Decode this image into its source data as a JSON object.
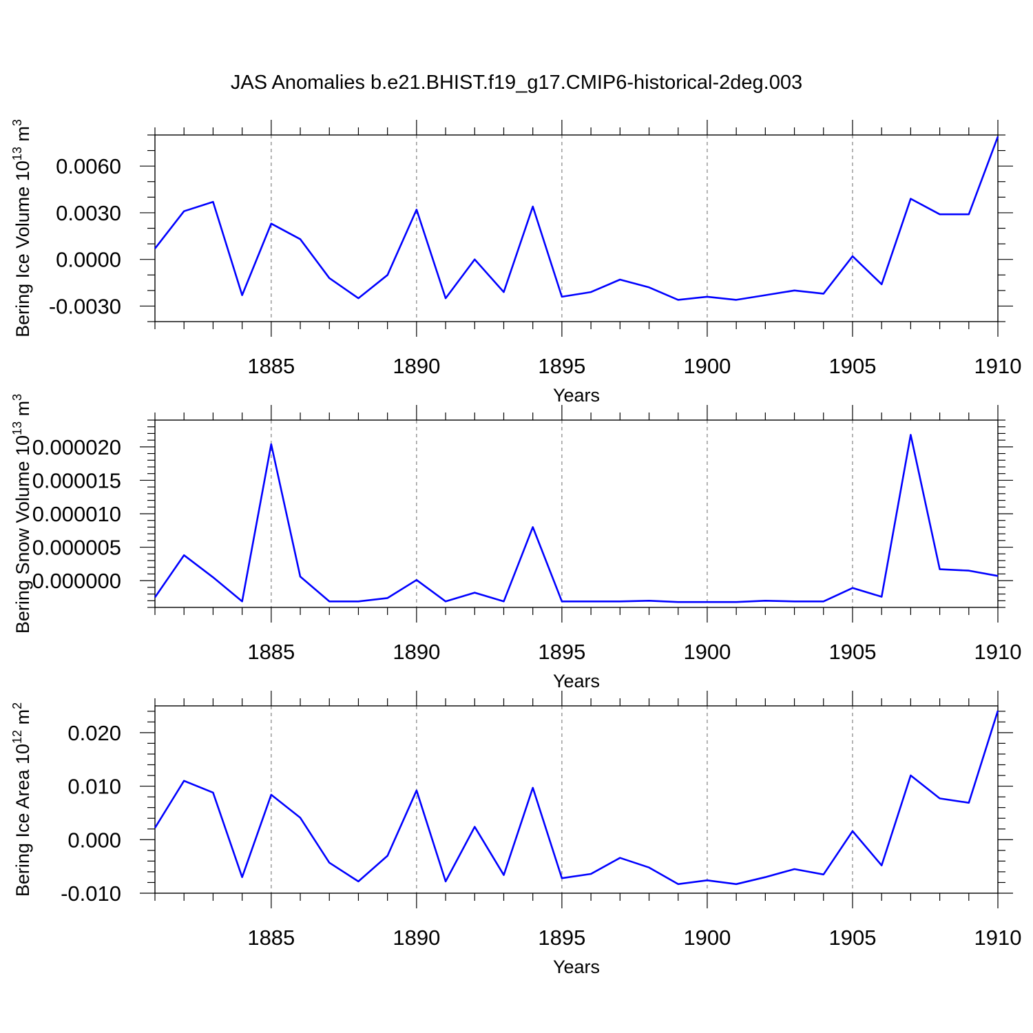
{
  "title": "JAS Anomalies b.e21.BHIST.f19_g17.CMIP6-historical-2deg.003",
  "colors": {
    "line": "#0000ff",
    "grid": "#808080",
    "axis": "#000000"
  },
  "chart_data": [
    {
      "type": "line",
      "title": "JAS Anomalies b.e21.BHIST.f19_g17.CMIP6-historical-2deg.003",
      "xlabel": "Years",
      "ylabel": {
        "text": "Bering Ice Volume 10",
        "exp": "13",
        "unit": " m",
        "unit_exp": "3"
      },
      "xlim": [
        1881,
        1910
      ],
      "ylim": [
        -0.004,
        0.008
      ],
      "xticks": [
        1885,
        1890,
        1895,
        1900,
        1905,
        1910
      ],
      "xtick_labels": [
        "1885",
        "1890",
        "1895",
        "1900",
        "1905",
        "1910"
      ],
      "yticks": [
        -0.003,
        0.0,
        0.003,
        0.006
      ],
      "ytick_labels": [
        "-0.0030",
        "0.0000",
        "0.0030",
        "0.0060"
      ],
      "yminor_step": 0.001,
      "grid": "x-dashed",
      "series": [
        {
          "name": "Bering Ice Volume",
          "x": [
            1881,
            1882,
            1883,
            1884,
            1885,
            1886,
            1887,
            1888,
            1889,
            1890,
            1891,
            1892,
            1893,
            1894,
            1895,
            1896,
            1897,
            1898,
            1899,
            1900,
            1901,
            1902,
            1903,
            1904,
            1905,
            1906,
            1907,
            1908,
            1909,
            1910
          ],
          "values": [
            0.0007,
            0.0031,
            0.0037,
            -0.0023,
            0.0023,
            0.0013,
            -0.0012,
            -0.0025,
            -0.001,
            0.0032,
            -0.0025,
            0.0,
            -0.0021,
            0.0034,
            -0.0024,
            -0.0021,
            -0.0013,
            -0.0018,
            -0.0026,
            -0.0024,
            -0.0026,
            -0.0023,
            -0.002,
            -0.0022,
            0.0002,
            -0.0016,
            0.0039,
            0.0029,
            0.0029,
            0.0079
          ]
        }
      ]
    },
    {
      "type": "line",
      "xlabel": "Years",
      "ylabel": {
        "text": "Bering Snow Volume 10",
        "exp": "13",
        "unit": " m",
        "unit_exp": "3"
      },
      "xlim": [
        1881,
        1910
      ],
      "ylim": [
        -4e-06,
        2.4e-05
      ],
      "xticks": [
        1885,
        1890,
        1895,
        1900,
        1905,
        1910
      ],
      "xtick_labels": [
        "1885",
        "1890",
        "1895",
        "1900",
        "1905",
        "1910"
      ],
      "yticks": [
        0.0,
        5e-06,
        1e-05,
        1.5e-05,
        2e-05
      ],
      "ytick_labels": [
        "0.000000",
        "0.000005",
        "0.000010",
        "0.000015",
        "0.000020"
      ],
      "yminor_step": 1e-06,
      "grid": "x-dashed",
      "series": [
        {
          "name": "Bering Snow Volume",
          "x": [
            1881,
            1882,
            1883,
            1884,
            1885,
            1886,
            1887,
            1888,
            1889,
            1890,
            1891,
            1892,
            1893,
            1894,
            1895,
            1896,
            1897,
            1898,
            1899,
            1900,
            1901,
            1902,
            1903,
            1904,
            1905,
            1906,
            1907,
            1908,
            1909,
            1910
          ],
          "values": [
            -2.5e-06,
            3.8e-06,
            5e-07,
            -3.1e-06,
            2.04e-05,
            6e-07,
            -3.1e-06,
            -3.1e-06,
            -2.6e-06,
            1e-07,
            -3.1e-06,
            -1.8e-06,
            -3.1e-06,
            8e-06,
            -3.1e-06,
            -3.1e-06,
            -3.1e-06,
            -3e-06,
            -3.2e-06,
            -3.2e-06,
            -3.2e-06,
            -3e-06,
            -3.1e-06,
            -3.1e-06,
            -1.1e-06,
            -2.4e-06,
            2.18e-05,
            1.7e-06,
            1.5e-06,
            7e-07
          ]
        }
      ]
    },
    {
      "type": "line",
      "xlabel": "Years",
      "ylabel": {
        "text": "Bering Ice Area 10",
        "exp": "12",
        "unit": " m",
        "unit_exp": "2"
      },
      "xlim": [
        1881,
        1910
      ],
      "ylim": [
        -0.01,
        0.025
      ],
      "xticks": [
        1885,
        1890,
        1895,
        1900,
        1905,
        1910
      ],
      "xtick_labels": [
        "1885",
        "1890",
        "1895",
        "1900",
        "1905",
        "1910"
      ],
      "yticks": [
        -0.01,
        0.0,
        0.01,
        0.02
      ],
      "ytick_labels": [
        "-0.010",
        "0.000",
        "0.010",
        "0.020"
      ],
      "yminor_step": 0.002,
      "grid": "x-dashed",
      "series": [
        {
          "name": "Bering Ice Area",
          "x": [
            1881,
            1882,
            1883,
            1884,
            1885,
            1886,
            1887,
            1888,
            1889,
            1890,
            1891,
            1892,
            1893,
            1894,
            1895,
            1896,
            1897,
            1898,
            1899,
            1900,
            1901,
            1902,
            1903,
            1904,
            1905,
            1906,
            1907,
            1908,
            1909,
            1910
          ],
          "values": [
            0.0022,
            0.011,
            0.0088,
            -0.007,
            0.0084,
            0.0041,
            -0.0043,
            -0.0078,
            -0.003,
            0.0092,
            -0.0078,
            0.0024,
            -0.0066,
            0.0097,
            -0.0072,
            -0.0064,
            -0.0034,
            -0.0052,
            -0.0083,
            -0.0076,
            -0.0083,
            -0.007,
            -0.0055,
            -0.0065,
            0.0016,
            -0.0048,
            0.012,
            0.0077,
            0.0069,
            0.0241
          ]
        }
      ]
    }
  ]
}
